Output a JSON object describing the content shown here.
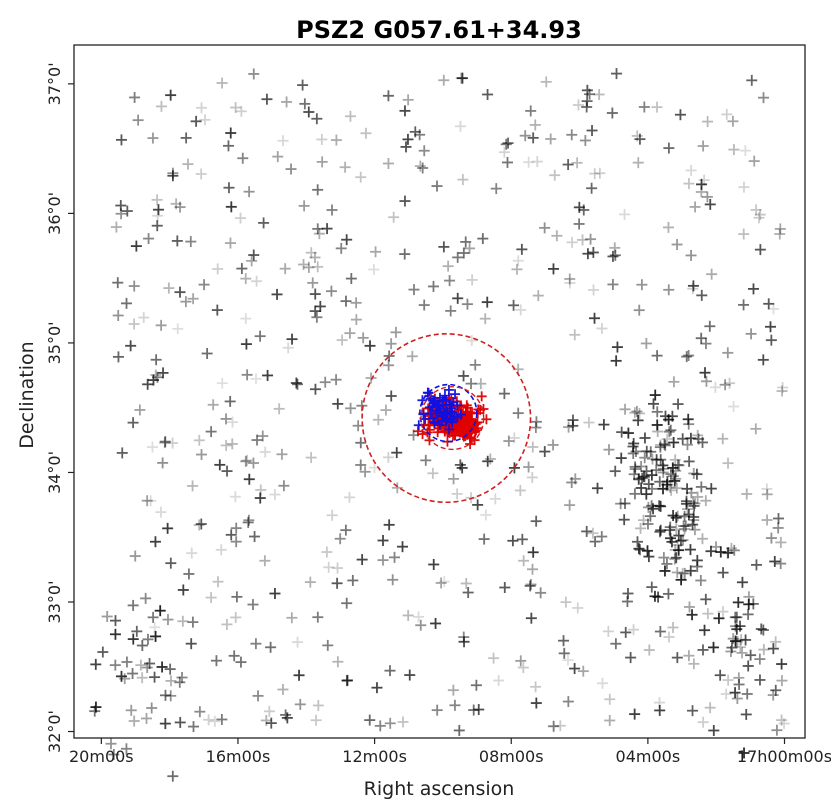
{
  "chart_data": {
    "type": "scatter",
    "title": "PSZ2 G057.61+34.93",
    "xlabel": "Right ascension",
    "ylabel": "Declination",
    "x_ticks": [
      "20m00s",
      "16m00s",
      "12m00s",
      "08m00s",
      "04m00s",
      "17h00m00s"
    ],
    "y_ticks": [
      "32°0'",
      "33°0'",
      "34°0'",
      "35°0'",
      "36°0'",
      "37°0'"
    ],
    "xlim_minutes_past_17h": [
      20.8,
      -0.6
    ],
    "ylim_deg": [
      31.95,
      37.3
    ],
    "x_ticks_minutes": [
      20,
      16,
      12,
      8,
      4,
      0
    ],
    "y_ticks_deg": [
      32,
      33,
      34,
      35,
      36,
      37
    ],
    "grid": false,
    "legend": "none",
    "marker_style": "plus",
    "colors": {
      "background_markers": "#000000",
      "cluster_members_red": "#e00000",
      "cluster_members_blue": "#1010e0",
      "outer_circle": "#d02020",
      "inner_circle_red": "#d02020",
      "inner_circle_blue": "#1010e0"
    },
    "cluster": {
      "ra_center_min": 9.9,
      "dec_center_deg": 34.42,
      "outer_radius_deg": 0.65,
      "inner_radius_deg": 0.22
    },
    "dense_regions": [
      {
        "ra_min": 3.1,
        "dec_deg": 33.55,
        "density": "high"
      },
      {
        "ra_min": 3.5,
        "dec_deg": 34.05,
        "density": "high"
      },
      {
        "ra_min": 1.2,
        "dec_deg": 32.65,
        "density": "medium"
      },
      {
        "ra_min": 18.7,
        "dec_deg": 32.6,
        "density": "medium"
      }
    ]
  }
}
